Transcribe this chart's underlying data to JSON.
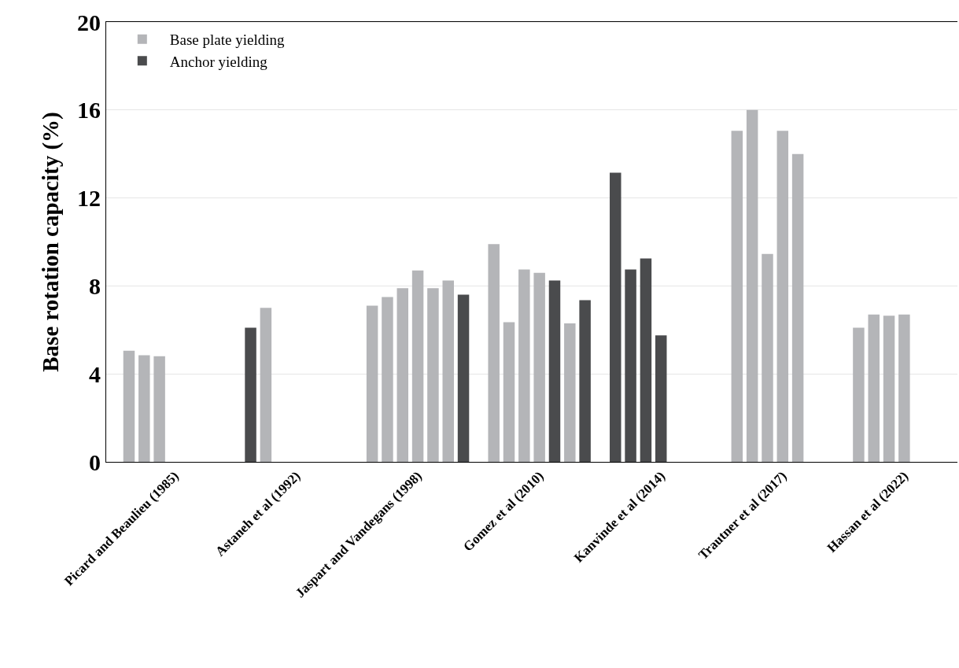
{
  "chart_data": {
    "type": "bar",
    "ylabel": "Base rotation capacity (%)",
    "categories": [
      null,
      null,
      null,
      null,
      "Picard and Beaulieu (1985)",
      null,
      null,
      null,
      null,
      null,
      null,
      null,
      "Astaneh et al (1992)",
      null,
      null,
      null,
      null,
      null,
      null,
      null,
      "Jaspart and Vandegans (1998)",
      null,
      null,
      null,
      null,
      null,
      null,
      null,
      "Gomez et al (2010)",
      null,
      null,
      null,
      null,
      null,
      null,
      null,
      "Kanvinde et al (2014)",
      null,
      null,
      null,
      null,
      null,
      null,
      null,
      "Trautner et al (2017)",
      null,
      null,
      null,
      null,
      null,
      null,
      null,
      "Hassan et al (2022)",
      null,
      null,
      null
    ],
    "ylim": [
      0,
      20
    ],
    "yticks": [
      0,
      4,
      8,
      12,
      16,
      20
    ],
    "series": [
      {
        "name": "Base plate yielding",
        "color": "#b4b5b8",
        "values": [
          null,
          5.05,
          4.85,
          4.8,
          null,
          null,
          null,
          null,
          null,
          null,
          7.0,
          null,
          null,
          null,
          null,
          null,
          null,
          7.1,
          7.5,
          7.9,
          8.7,
          7.9,
          8.25,
          null,
          null,
          9.9,
          6.35,
          8.75,
          8.6,
          null,
          6.3,
          null,
          null,
          null,
          null,
          null,
          null,
          null,
          null,
          null,
          null,
          15.05,
          16.0,
          9.45,
          15.05,
          14.0,
          null,
          null,
          null,
          6.1,
          6.7,
          6.65,
          6.7,
          null,
          null,
          null
        ]
      },
      {
        "name": "Anchor yielding",
        "color": "#4a4b4d",
        "values": [
          null,
          null,
          null,
          null,
          null,
          null,
          null,
          null,
          null,
          6.1,
          null,
          null,
          null,
          null,
          null,
          null,
          null,
          null,
          null,
          null,
          null,
          null,
          null,
          7.6,
          null,
          null,
          null,
          null,
          null,
          8.25,
          null,
          7.35,
          null,
          13.15,
          8.75,
          9.25,
          5.75,
          null,
          null,
          null,
          null,
          null,
          null,
          null,
          null,
          null,
          null,
          null,
          null,
          null,
          null,
          null,
          null,
          null,
          null,
          null
        ]
      }
    ],
    "grid": "y",
    "legend": "top left"
  }
}
